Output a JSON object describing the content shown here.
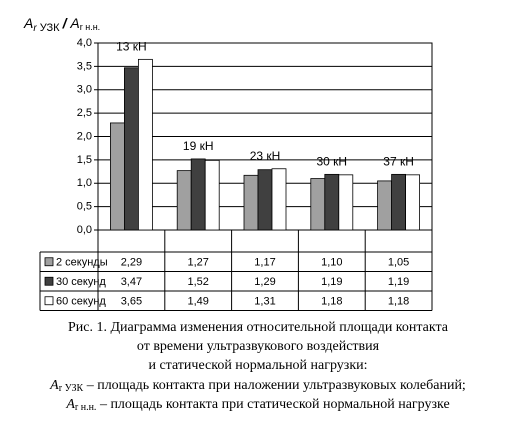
{
  "chart_data": {
    "type": "bar",
    "y_label_parts": [
      "A",
      "r",
      " УЗК ",
      "/",
      " A",
      "r н.н."
    ],
    "categories": [
      "13 кН",
      "19 кН",
      "23 кН",
      "30 кН",
      "37 кН"
    ],
    "series": [
      {
        "name": "2 секунды",
        "color": "#a0a0a0",
        "values": [
          2.29,
          1.27,
          1.17,
          1.1,
          1.05
        ],
        "value_labels": [
          "2,29",
          "1,27",
          "1,17",
          "1,10",
          "1,05"
        ]
      },
      {
        "name": "30 секунд",
        "color": "#404040",
        "values": [
          3.47,
          1.52,
          1.29,
          1.19,
          1.19
        ],
        "value_labels": [
          "3,47",
          "1,52",
          "1,29",
          "1,19",
          "1,19"
        ]
      },
      {
        "name": "60 секунд",
        "color": "#ffffff",
        "values": [
          3.65,
          1.49,
          1.31,
          1.18,
          1.18
        ],
        "value_labels": [
          "3,65",
          "1,49",
          "1,31",
          "1,18",
          "1,18"
        ]
      }
    ],
    "ylim": [
      0,
      4
    ],
    "yticks": [
      {
        "value": 0,
        "label": "0,0"
      },
      {
        "value": 0.5,
        "label": "0,5"
      },
      {
        "value": 1,
        "label": "1,0"
      },
      {
        "value": 1.5,
        "label": "1,5"
      },
      {
        "value": 2,
        "label": "2,0"
      },
      {
        "value": 2.5,
        "label": "2,5"
      },
      {
        "value": 3,
        "label": "3,0"
      },
      {
        "value": 3.5,
        "label": "3,5"
      },
      {
        "value": 4,
        "label": "4,0"
      }
    ],
    "grid": true
  },
  "caption": {
    "lines": [
      "Рис. 1. Диаграмма изменения относительной площади контакта",
      "от времени ультразвукового воздействия",
      "и статической нормальной нагрузки:"
    ],
    "notes": [
      {
        "symbol": "A",
        "sub": "r УЗК",
        "text": " – площадь контакта при наложении ультразвуковых колебаний;"
      },
      {
        "symbol": "A",
        "sub": "r н.н.",
        "text": " – площадь контакта при статической нормальной нагрузке"
      }
    ]
  }
}
